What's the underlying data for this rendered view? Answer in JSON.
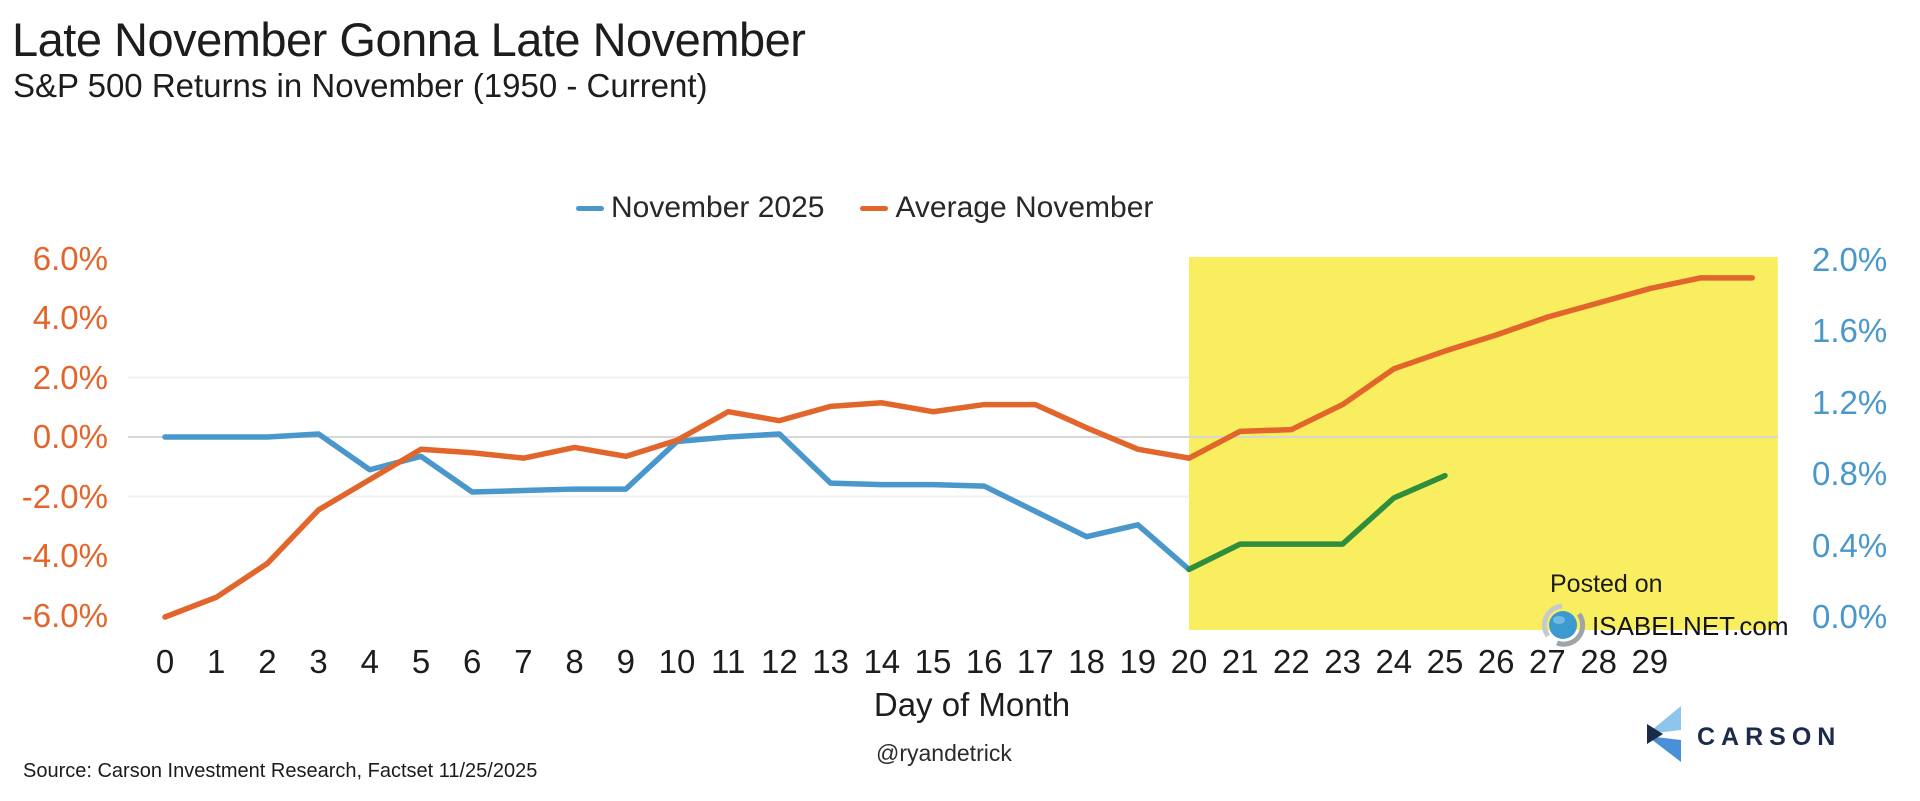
{
  "title": "Late November Gonna Late November",
  "subtitle": "S&P 500 Returns in November (1950 - Current)",
  "legend": [
    {
      "label": "November 2025",
      "color": "#4a98cb"
    },
    {
      "label": "Average November",
      "color": "#e2662b"
    }
  ],
  "footer": {
    "source": "Source: Carson Investment Research, Factset 11/25/2025",
    "handle": "@ryandetrick"
  },
  "watermark": {
    "line1": "Posted on",
    "line2": "ISABELNET.com"
  },
  "logo_text": "CARSON",
  "chart_data": {
    "type": "line",
    "title": "Late November Gonna Late November",
    "subtitle": "S&P 500 Returns in November (1950 - Current)",
    "xlabel": "Day of Month",
    "x_ticks": [
      "0",
      "1",
      "2",
      "3",
      "4",
      "5",
      "6",
      "7",
      "8",
      "9",
      "10",
      "11",
      "12",
      "13",
      "14",
      "15",
      "16",
      "17",
      "18",
      "19",
      "20",
      "21",
      "22",
      "23",
      "24",
      "25",
      "26",
      "27",
      "28",
      "29"
    ],
    "x_range": [
      0,
      31.5
    ],
    "left_axis": {
      "ticks": [
        "6.0%",
        "4.0%",
        "2.0%",
        "0.0%",
        "-2.0%",
        "-4.0%",
        "-6.0%"
      ],
      "tick_values": [
        6,
        4,
        2,
        0,
        -2,
        -4,
        -6
      ],
      "range": [
        -6,
        6
      ],
      "label_color": "#e2662b",
      "applies_to": "November 2025"
    },
    "right_axis": {
      "ticks": [
        "2.0%",
        "1.6%",
        "1.2%",
        "0.8%",
        "0.4%",
        "0.0%"
      ],
      "tick_values": [
        2.0,
        1.6,
        1.2,
        0.8,
        0.4,
        0.0
      ],
      "range": [
        0,
        2
      ],
      "label_color": "#4a98cb",
      "applies_to": "Average November"
    },
    "gridlines": {
      "zero_line_left_value": 0,
      "faint_left_values": [
        2,
        -2
      ]
    },
    "highlight_region": {
      "x_from": 20,
      "x_to": 31.5,
      "color": "#f8ee5f",
      "note": "late-November highlight band"
    },
    "series": [
      {
        "name": "November 2025",
        "axis": "left",
        "color": "#4a98cb",
        "x_start": 0,
        "values": [
          0.0,
          0.0,
          0.0,
          0.1,
          -1.1,
          -0.65,
          -1.85,
          -1.8,
          -1.75,
          -1.75,
          -0.15,
          0.0,
          0.1,
          -1.55,
          -1.6,
          -1.6,
          -1.65,
          -2.5,
          -3.35,
          -2.95,
          -4.45
        ]
      },
      {
        "name": "November 2025 late-month segment (unlabeled green)",
        "axis": "left",
        "color": "#2e8e3e",
        "x_start": 20,
        "values": [
          -4.45,
          -3.6,
          -3.6,
          -3.6,
          -2.05,
          -1.3
        ]
      },
      {
        "name": "Average November",
        "axis": "right",
        "color": "#e2662b",
        "x_start": 0,
        "values": [
          0.0,
          0.11,
          0.3,
          0.6,
          0.77,
          0.94,
          0.92,
          0.89,
          0.95,
          0.9,
          0.99,
          1.15,
          1.1,
          1.18,
          1.2,
          1.15,
          1.19,
          1.19,
          1.06,
          0.94,
          0.89,
          1.04,
          1.05,
          1.19,
          1.39,
          1.49,
          1.58,
          1.68,
          1.76,
          1.84,
          1.9,
          1.9
        ]
      }
    ]
  }
}
